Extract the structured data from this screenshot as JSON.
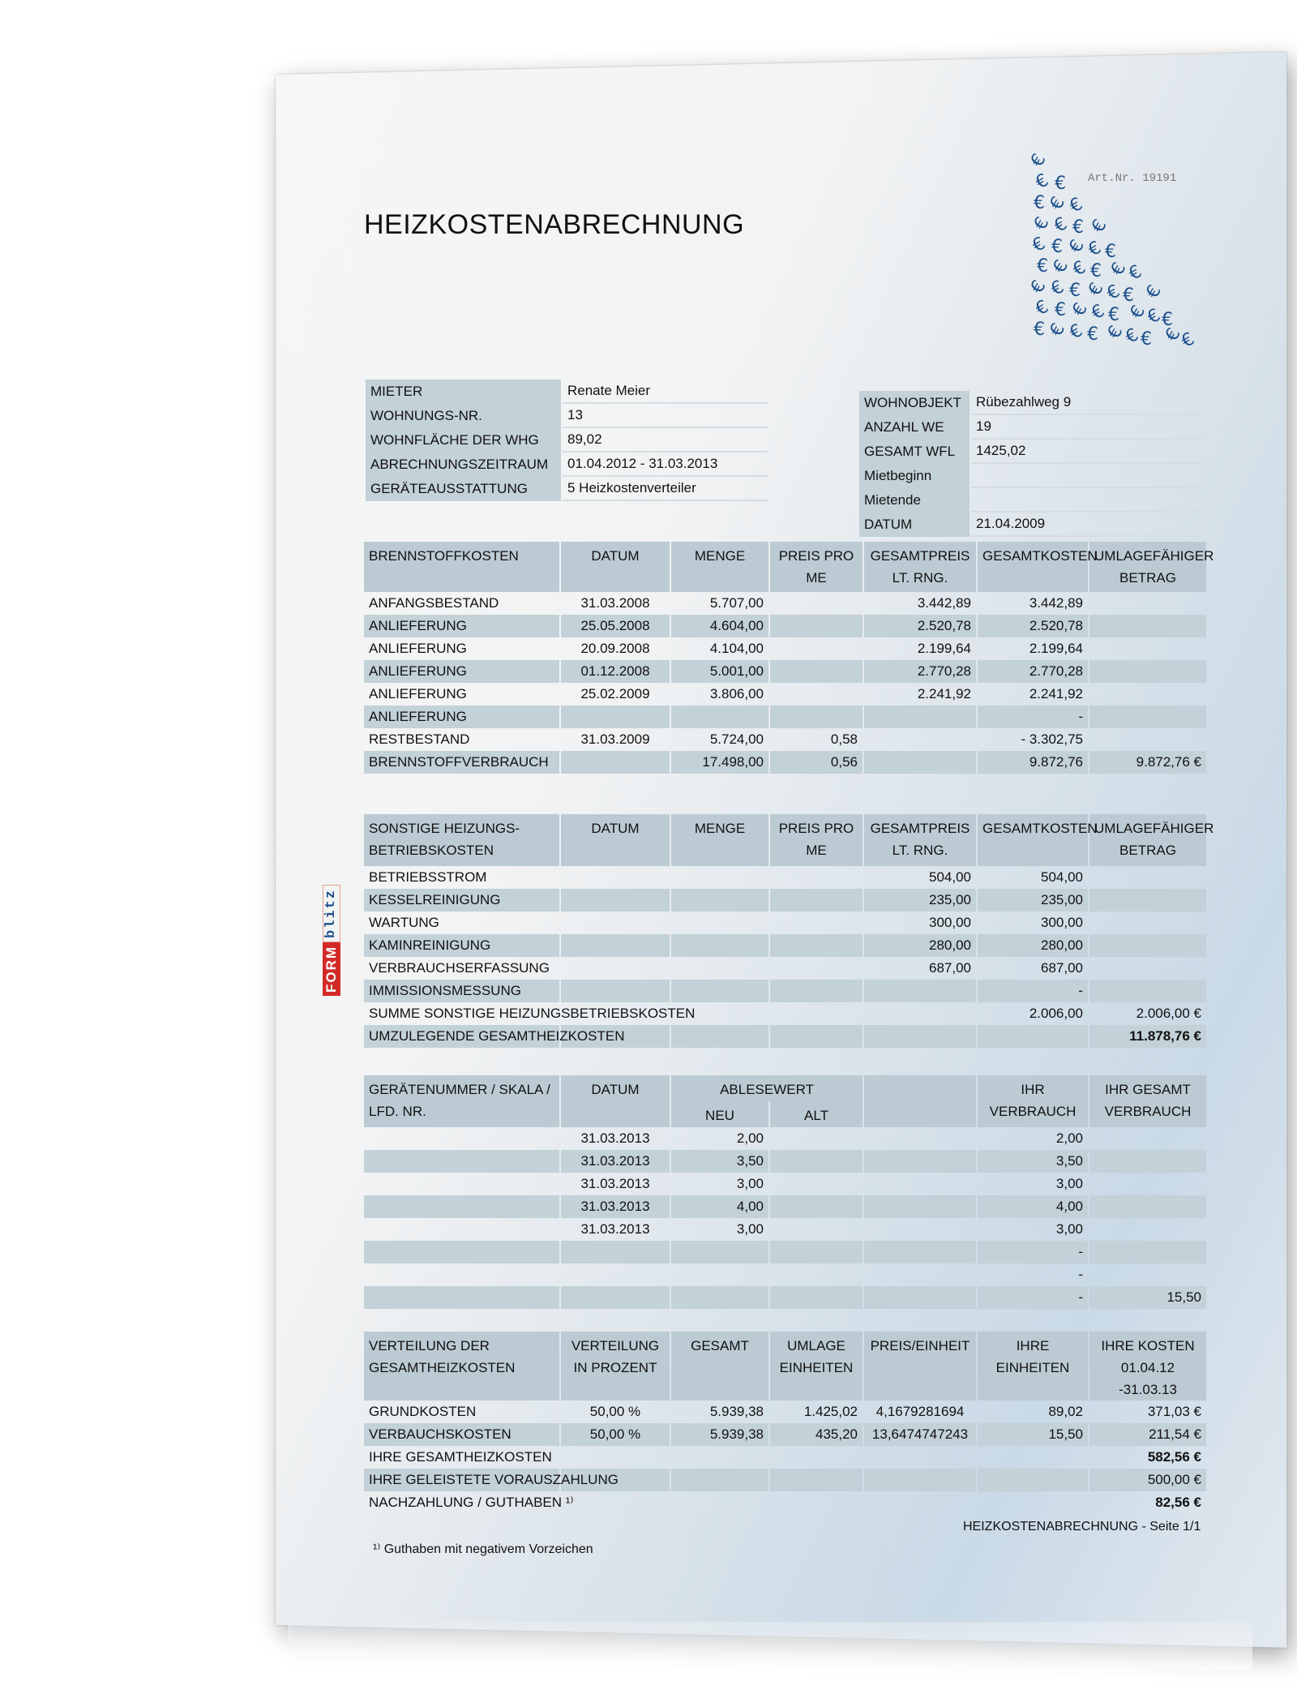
{
  "title": "HEIZKOSTENABRECHNUNG",
  "art_nr": "Art.Nr. 19191",
  "logo": {
    "part1": "FORM",
    "part2": "blitz"
  },
  "tenant": [
    {
      "label": "MIETER",
      "value": "Renate Meier"
    },
    {
      "label": "WOHNUNGS-NR.",
      "value": "13"
    },
    {
      "label": "WOHNFLÄCHE DER WHG",
      "value": "89,02"
    },
    {
      "label": "ABRECHNUNGSZEITRAUM",
      "value": "01.04.2012 -  31.03.2013"
    },
    {
      "label": "GERÄTEAUSSTATTUNG",
      "value": "5 Heizkostenverteiler"
    }
  ],
  "property": [
    {
      "label": "WOHNOBJEKT",
      "value": "Rübezahlweg 9"
    },
    {
      "label": "ANZAHL WE",
      "value": "19"
    },
    {
      "label": "GESAMT WFL",
      "value": "1425,02"
    },
    {
      "label": "Mietbeginn",
      "value": ""
    },
    {
      "label": "Mietende",
      "value": ""
    },
    {
      "label": "DATUM",
      "value": "21.04.2009"
    }
  ],
  "fuel": {
    "headers": [
      "BRENNSTOFFKOSTEN",
      "DATUM",
      "MENGE",
      "PREIS PRO ME",
      "GESAMTPREIS LT. RNG.",
      "GESAMTKOSTEN",
      "UMLAGEFÄHIGER BETRAG"
    ],
    "rows": [
      [
        "ANFANGSBESTAND",
        "31.03.2008",
        "5.707,00",
        "",
        "3.442,89",
        "3.442,89",
        ""
      ],
      [
        "ANLIEFERUNG",
        "25.05.2008",
        "4.604,00",
        "",
        "2.520,78",
        "2.520,78",
        ""
      ],
      [
        "ANLIEFERUNG",
        "20.09.2008",
        "4.104,00",
        "",
        "2.199,64",
        "2.199,64",
        ""
      ],
      [
        "ANLIEFERUNG",
        "01.12.2008",
        "5.001,00",
        "",
        "2.770,28",
        "2.770,28",
        ""
      ],
      [
        "ANLIEFERUNG",
        "25.02.2009",
        "3.806,00",
        "",
        "2.241,92",
        "2.241,92",
        ""
      ],
      [
        "ANLIEFERUNG",
        "",
        "",
        "",
        "",
        "-",
        ""
      ],
      [
        "RESTBESTAND",
        "31.03.2009",
        "5.724,00",
        "0,58",
        "",
        "-   3.302,75",
        ""
      ],
      [
        "BRENNSTOFFVERBRAUCH",
        "",
        "17.498,00",
        "0,56",
        "",
        "9.872,76",
        "9.872,76 €"
      ]
    ]
  },
  "other": {
    "headers": [
      "SONSTIGE HEIZUNGS-BETRIEBSKOSTEN",
      "DATUM",
      "MENGE",
      "PREIS PRO ME",
      "GESAMTPREIS LT. RNG.",
      "GESAMTKOSTEN",
      "UMLAGEFÄHIGER BETRAG"
    ],
    "rows": [
      [
        "BETRIEBSSTROM",
        "",
        "",
        "",
        "504,00",
        "504,00",
        ""
      ],
      [
        "KESSELREINIGUNG",
        "",
        "",
        "",
        "235,00",
        "235,00",
        ""
      ],
      [
        "WARTUNG",
        "",
        "",
        "",
        "300,00",
        "300,00",
        ""
      ],
      [
        "KAMINREINIGUNG",
        "",
        "",
        "",
        "280,00",
        "280,00",
        ""
      ],
      [
        "VERBRAUCHSERFASSUNG",
        "",
        "",
        "",
        "687,00",
        "687,00",
        ""
      ],
      [
        "IMMISSIONSMESSUNG",
        "",
        "",
        "",
        "",
        "-",
        ""
      ],
      [
        "SUMME SONSTIGE HEIZUNGSBETRIEBSKOSTEN",
        "",
        "",
        "",
        "",
        "2.006,00",
        "2.006,00 €"
      ],
      [
        "UMZULEGENDE GESAMTHEIZKOSTEN",
        "",
        "",
        "",
        "",
        "",
        "11.878,76 €"
      ]
    ]
  },
  "meters": {
    "headers": [
      "GERÄTENUMMER / SKALA / LFD. NR.",
      "DATUM",
      "ABLESEWERT",
      "",
      "IHR VERBRAUCH",
      "IHR GESAMT VERBRAUCH"
    ],
    "subheaders": [
      "NEU",
      "ALT"
    ],
    "rows": [
      [
        "",
        "31.03.2013",
        "2,00",
        "",
        "",
        "2,00",
        ""
      ],
      [
        "",
        "31.03.2013",
        "3,50",
        "",
        "",
        "3,50",
        ""
      ],
      [
        "",
        "31.03.2013",
        "3,00",
        "",
        "",
        "3,00",
        ""
      ],
      [
        "",
        "31.03.2013",
        "4,00",
        "",
        "",
        "4,00",
        ""
      ],
      [
        "",
        "31.03.2013",
        "3,00",
        "",
        "",
        "3,00",
        ""
      ],
      [
        "",
        "",
        "",
        "",
        "",
        "-",
        ""
      ],
      [
        "",
        "",
        "",
        "",
        "",
        "-",
        ""
      ],
      [
        "",
        "",
        "",
        "",
        "",
        "-",
        "15,50"
      ],
      [
        "",
        "",
        "",
        "",
        "",
        "",
        ""
      ]
    ]
  },
  "distribution": {
    "headers": [
      "VERTEILUNG DER GESAMTHEIZKOSTEN",
      "VERTEILUNG IN PROZENT",
      "GESAMT",
      "UMLAGE EINHEITEN",
      "PREIS/EINHEIT",
      "IHRE EINHEITEN",
      "IHRE KOSTEN 01.04.12 -31.03.13"
    ],
    "rows": [
      [
        "GRUNDKOSTEN",
        "50,00 %",
        "5.939,38",
        "1.425,02",
        "4,1679281694",
        "89,02",
        "371,03 €"
      ],
      [
        "VERBAUCHSKOSTEN",
        "50,00 %",
        "5.939,38",
        "435,20",
        "13,6474747243",
        "15,50",
        "211,54 €"
      ],
      [
        "IHRE GESAMTHEIZKOSTEN",
        "",
        "",
        "",
        "",
        "",
        "582,56 €"
      ],
      [
        "IHRE GELEISTETE VORAUSZAHLUNG",
        "",
        "",
        "",
        "",
        "",
        "500,00 €"
      ],
      [
        "NACHZAHLUNG / GUTHABEN ¹⁾",
        "",
        "",
        "",
        "",
        "",
        "82,56 €"
      ]
    ]
  },
  "footnote": "¹⁾ Guthaben mit negativem Vorzeichen",
  "footer": "HEIZKOSTENABRECHNUNG - Seite 1/1"
}
